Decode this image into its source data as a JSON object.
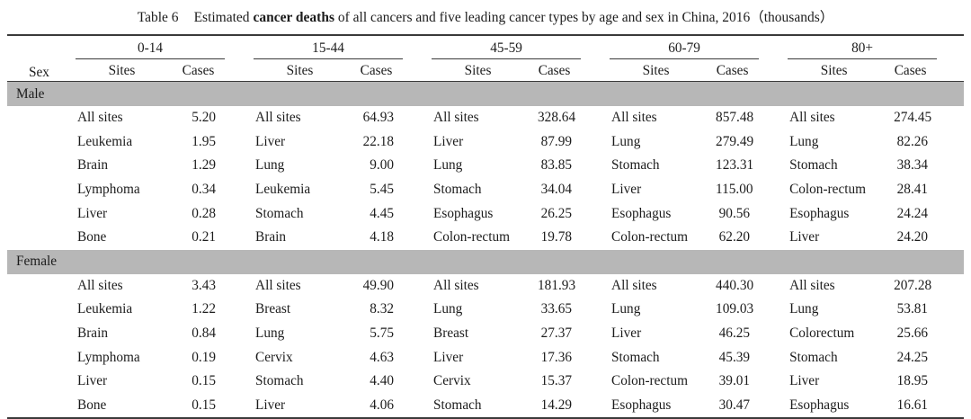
{
  "title": {
    "table_label": "Table 6",
    "text_before_bold": "Estimated ",
    "bold": "cancer deaths",
    "text_after_bold": " of all cancers and five leading cancer types by age and sex in China, 2016（thousands）"
  },
  "table": {
    "sex_header": "Sex",
    "age_groups": [
      "0-14",
      "15-44",
      "45-59",
      "60-79",
      "80+"
    ],
    "subheaders": {
      "sites": "Sites",
      "cases": "Cases"
    },
    "sections": [
      {
        "sex": "Male",
        "rows": [
          [
            {
              "site": "All sites",
              "cases": "5.20"
            },
            {
              "site": "All sites",
              "cases": "64.93"
            },
            {
              "site": "All sites",
              "cases": "328.64"
            },
            {
              "site": "All sites",
              "cases": "857.48"
            },
            {
              "site": "All sites",
              "cases": "274.45"
            }
          ],
          [
            {
              "site": "Leukemia",
              "cases": "1.95"
            },
            {
              "site": "Liver",
              "cases": "22.18"
            },
            {
              "site": "Liver",
              "cases": "87.99"
            },
            {
              "site": "Lung",
              "cases": "279.49"
            },
            {
              "site": "Lung",
              "cases": "82.26"
            }
          ],
          [
            {
              "site": "Brain",
              "cases": "1.29"
            },
            {
              "site": "Lung",
              "cases": "9.00"
            },
            {
              "site": "Lung",
              "cases": "83.85"
            },
            {
              "site": "Stomach",
              "cases": "123.31"
            },
            {
              "site": "Stomach",
              "cases": "38.34"
            }
          ],
          [
            {
              "site": "Lymphoma",
              "cases": "0.34"
            },
            {
              "site": "Leukemia",
              "cases": "5.45"
            },
            {
              "site": "Stomach",
              "cases": "34.04"
            },
            {
              "site": "Liver",
              "cases": "115.00"
            },
            {
              "site": "Colon-rectum",
              "cases": "28.41"
            }
          ],
          [
            {
              "site": "Liver",
              "cases": "0.28"
            },
            {
              "site": "Stomach",
              "cases": "4.45"
            },
            {
              "site": "Esophagus",
              "cases": "26.25"
            },
            {
              "site": "Esophagus",
              "cases": "90.56"
            },
            {
              "site": "Esophagus",
              "cases": "24.24"
            }
          ],
          [
            {
              "site": "Bone",
              "cases": "0.21"
            },
            {
              "site": "Brain",
              "cases": "4.18"
            },
            {
              "site": "Colon-rectum",
              "cases": "19.78"
            },
            {
              "site": "Colon-rectum",
              "cases": "62.20"
            },
            {
              "site": "Liver",
              "cases": "24.20"
            }
          ]
        ]
      },
      {
        "sex": "Female",
        "rows": [
          [
            {
              "site": "All sites",
              "cases": "3.43"
            },
            {
              "site": "All sites",
              "cases": "49.90"
            },
            {
              "site": "All sites",
              "cases": "181.93"
            },
            {
              "site": "All sites",
              "cases": "440.30"
            },
            {
              "site": "All sites",
              "cases": "207.28"
            }
          ],
          [
            {
              "site": "Leukemia",
              "cases": "1.22"
            },
            {
              "site": "Breast",
              "cases": "8.32"
            },
            {
              "site": "Lung",
              "cases": "33.65"
            },
            {
              "site": "Lung",
              "cases": "109.03"
            },
            {
              "site": "Lung",
              "cases": "53.81"
            }
          ],
          [
            {
              "site": "Brain",
              "cases": "0.84"
            },
            {
              "site": "Lung",
              "cases": "5.75"
            },
            {
              "site": "Breast",
              "cases": "27.37"
            },
            {
              "site": "Liver",
              "cases": "46.25"
            },
            {
              "site": "Colorectum",
              "cases": "25.66"
            }
          ],
          [
            {
              "site": "Lymphoma",
              "cases": "0.19"
            },
            {
              "site": "Cervix",
              "cases": "4.63"
            },
            {
              "site": "Liver",
              "cases": "17.36"
            },
            {
              "site": "Stomach",
              "cases": "45.39"
            },
            {
              "site": "Stomach",
              "cases": "24.25"
            }
          ],
          [
            {
              "site": "Liver",
              "cases": "0.15"
            },
            {
              "site": "Stomach",
              "cases": "4.40"
            },
            {
              "site": "Cervix",
              "cases": "15.37"
            },
            {
              "site": "Colon-rectum",
              "cases": "39.01"
            },
            {
              "site": "Liver",
              "cases": "18.95"
            }
          ],
          [
            {
              "site": "Bone",
              "cases": "0.15"
            },
            {
              "site": "Liver",
              "cases": "4.06"
            },
            {
              "site": "Stomach",
              "cases": "14.29"
            },
            {
              "site": "Esophagus",
              "cases": "30.47"
            },
            {
              "site": "Esophagus",
              "cases": "16.61"
            }
          ]
        ]
      }
    ]
  },
  "colors": {
    "section_band": "#b7b7b7",
    "rule_dark": "#3a3a3a"
  }
}
